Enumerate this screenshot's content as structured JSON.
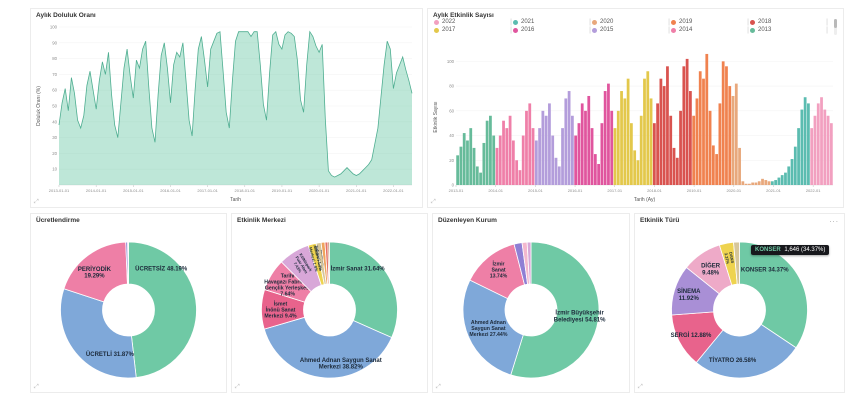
{
  "accent_colors": {
    "green": "#6fc9a5",
    "blue": "#7fa8d9",
    "pink": "#ee7fa6"
  },
  "panels": {
    "occupancy": {
      "title": "Aylık Doluluk Oranı"
    },
    "events": {
      "title": "Aylık Etkinlik Sayısı"
    },
    "pricing": {
      "title": "Ücretlendirme"
    },
    "venue": {
      "title": "Etkinlik Merkezi"
    },
    "organizer": {
      "title": "Düzenleyen Kurum"
    },
    "event_type": {
      "title": "Etkinlik Türü",
      "tooltip": {
        "series": "KONSER",
        "value": "1,646 (34.37%)",
        "series_color": "#6fc9a5"
      }
    }
  },
  "chart_data": [
    {
      "type": "area",
      "title": "Aylık Doluluk Oranı",
      "xlabel": "Tarih",
      "ylabel": "Doluluk Oranı (%)",
      "ylim": [
        0,
        100
      ],
      "yticks": [
        10,
        20,
        30,
        40,
        50,
        60,
        70,
        80,
        90,
        100
      ],
      "x_tick_labels": [
        "2013-01-01",
        "2014-01-01",
        "2015-01-01",
        "2016-01-01",
        "2017-01-01",
        "2018-01-01",
        "2019-01-01",
        "2020-01-01",
        "2021-01-01",
        "2022-01-01"
      ],
      "x_tick_index": [
        0,
        12,
        24,
        36,
        48,
        60,
        72,
        84,
        96,
        108
      ],
      "line_color": "#4fae91",
      "fill_color": "rgba(111,201,168,0.45)",
      "x_start": "2013-01",
      "values": [
        38,
        52,
        61,
        47,
        68,
        58,
        41,
        36,
        44,
        63,
        72,
        60,
        48,
        66,
        78,
        70,
        84,
        57,
        38,
        30,
        52,
        74,
        86,
        69,
        55,
        79,
        74,
        86,
        91,
        62,
        36,
        27,
        57,
        82,
        90,
        74,
        52,
        76,
        84,
        81,
        90,
        66,
        41,
        31,
        61,
        86,
        94,
        79,
        62,
        86,
        91,
        96,
        97,
        72,
        46,
        36,
        66,
        91,
        97,
        97,
        97,
        97,
        94,
        97,
        97,
        76,
        51,
        41,
        71,
        95,
        97,
        89,
        86,
        95,
        97,
        96,
        94,
        79,
        54,
        46,
        76,
        97,
        94,
        88,
        84,
        89,
        42,
        9,
        6,
        5,
        6,
        7,
        9,
        11,
        9,
        7,
        6,
        7,
        9,
        11,
        13,
        16,
        26,
        36,
        56,
        76,
        91,
        86,
        61,
        71,
        76,
        81,
        73,
        66,
        58
      ]
    },
    {
      "type": "bar",
      "title": "Aylık Etkinlik Sayısı",
      "xlabel": "Tarih (Ay)",
      "ylabel": "Etkinlik Sayısı",
      "ylim": [
        0,
        110
      ],
      "yticks": [
        0,
        20,
        40,
        60,
        80,
        100
      ],
      "x_tick_labels": [
        "2013-01",
        "2014-01",
        "2015-01",
        "2016-01",
        "2017-01",
        "2018-01",
        "2019-01",
        "2020-01",
        "2021-01",
        "2022-01"
      ],
      "x_tick_index": [
        0,
        12,
        24,
        36,
        48,
        60,
        72,
        84,
        96,
        108
      ],
      "x_start": "2013-01",
      "year_order": [
        "2013",
        "2014",
        "2015",
        "2016",
        "2017",
        "2018",
        "2019",
        "2020",
        "2021",
        "2022"
      ],
      "year_colors": {
        "2013": "#66bb9a",
        "2014": "#ef7fa8",
        "2015": "#b39ddb",
        "2016": "#e0559e",
        "2017": "#e3c84b",
        "2018": "#d9534f",
        "2019": "#f0824f",
        "2020": "#e8a87c",
        "2021": "#5bbcb0",
        "2022": "#f2a0c0"
      },
      "legend_rows": [
        [
          "2022",
          "2021",
          "2020",
          "2019",
          "2018"
        ],
        [
          "2017",
          "2016",
          "2015",
          "2014",
          "2013"
        ]
      ],
      "values": [
        24,
        31,
        42,
        36,
        46,
        30,
        15,
        10,
        34,
        52,
        56,
        40,
        30,
        40,
        52,
        46,
        56,
        36,
        20,
        12,
        40,
        60,
        66,
        46,
        36,
        46,
        60,
        56,
        66,
        40,
        22,
        15,
        46,
        70,
        76,
        56,
        40,
        50,
        66,
        60,
        72,
        46,
        25,
        17,
        50,
        76,
        82,
        60,
        46,
        60,
        76,
        70,
        86,
        50,
        28,
        20,
        56,
        86,
        92,
        70,
        50,
        66,
        86,
        80,
        96,
        56,
        30,
        22,
        60,
        96,
        102,
        76,
        56,
        70,
        92,
        86,
        106,
        60,
        32,
        25,
        66,
        100,
        96,
        80,
        72,
        82,
        30,
        3,
        1,
        1,
        2,
        2,
        3,
        5,
        4,
        3,
        3,
        4,
        6,
        8,
        10,
        15,
        21,
        31,
        46,
        61,
        71,
        66,
        46,
        56,
        66,
        71,
        61,
        56,
        50
      ]
    },
    {
      "type": "pie",
      "title": "Ücretlendirme",
      "slices": [
        {
          "label": "ÜCRETSİZ",
          "value": 48.19,
          "color": "#6fc9a5",
          "lines": [
            "ÜCRETSİZ 48.19%"
          ],
          "pos": [
            38,
            0.78
          ]
        },
        {
          "label": "ÜCRETLİ",
          "value": 31.87,
          "color": "#7fa8d9",
          "lines": [
            "ÜCRETLİ 31.87%"
          ],
          "pos": [
            203,
            0.7
          ]
        },
        {
          "label": "PERİYODİK",
          "value": 19.29,
          "color": "#ee7fa6",
          "lines": [
            "PERİYODİK",
            "19.29%"
          ],
          "pos": [
            318,
            0.75
          ]
        },
        {
          "label": "",
          "value": 0.45,
          "color": "#8f7fd4",
          "lines": []
        },
        {
          "label": "",
          "value": 0.2,
          "color": "#f3b8ce",
          "lines": []
        }
      ]
    },
    {
      "type": "pie",
      "title": "Etkinlik Merkezi",
      "slices": [
        {
          "label": "İzmir Sanat",
          "value": 31.64,
          "color": "#6fc9a5",
          "lines": [
            "İzmir Sanat 31.64%"
          ],
          "pos": [
            34,
            0.74
          ]
        },
        {
          "label": "Ahmed Adnan Saygun Sanat Merkezi",
          "value": 38.82,
          "color": "#7fa8d9",
          "lines": [
            "Ahmed Adnan Saygun Sanat",
            "Merkezi 38.82%"
          ],
          "pos": [
            168,
            0.8
          ]
        },
        {
          "label": "İsmet İnönü Sanat Merkezi",
          "value": 9.4,
          "color": "#e8638c",
          "lines": [
            "İsmet",
            "İnönü Sanat",
            "Merkezi 9.4%"
          ]
        },
        {
          "label": "Tarihi Havagazı Fabrikası Gençlik Yerleşkesi",
          "value": 7.64,
          "color": "#ee7fa6",
          "lines": [
            "Tarihi",
            "Havagazı Fabrikası",
            "Gençlik Yerleşkesi",
            "7.64%"
          ]
        },
        {
          "label": "Kültürpark Fuar Alanı",
          "value": 7.43,
          "color": "#d8a7d8",
          "lines": [
            "Kültürpark",
            "Fuar Alanı",
            "7.43%"
          ],
          "rotate": true
        },
        {
          "label": "Atatürk Kültür Merkezi",
          "value": 1.9,
          "color": "#eed34f",
          "lines": [
            "Atatürk Kültür",
            "Merkezi 1.9%"
          ],
          "rotate": true
        },
        {
          "label": "Elhamra Sahnesi",
          "value": 1.2,
          "color": "#d6c69a",
          "lines": [
            "Elhamra",
            "Sahnesi 1.2%"
          ],
          "rotate": true
        },
        {
          "label": "",
          "value": 0.9,
          "color": "#efa45d",
          "lines": []
        },
        {
          "label": "",
          "value": 0.7,
          "color": "#e57368",
          "lines": []
        },
        {
          "label": "",
          "value": 0.37,
          "color": "#b97a56",
          "lines": []
        }
      ]
    },
    {
      "type": "pie",
      "title": "Düzenleyen Kurum",
      "slices": [
        {
          "label": "İzmir Büyükşehir Belediyesi",
          "value": 54.81,
          "color": "#6fc9a5",
          "lines": [
            "İzmir Büyükşehir",
            "Belediyesi 54.81%"
          ],
          "pos": [
            97,
            0.72
          ]
        },
        {
          "label": "Ahmed Adnan Saygun Sanat Merkezi",
          "value": 27.44,
          "color": "#7fa8d9",
          "lines": [
            "Ahmed Adnan",
            "Saygun Sanat",
            "Merkezi 27.44%"
          ],
          "pos": [
            247,
            0.68
          ]
        },
        {
          "label": "İzmir Sanat",
          "value": 13.74,
          "color": "#ee7fa6",
          "lines": [
            "İzmir",
            "Sanat",
            "13.74%"
          ],
          "pos": [
            321,
            0.76
          ]
        },
        {
          "label": "",
          "value": 1.9,
          "color": "#8f7fd4",
          "lines": []
        },
        {
          "label": "",
          "value": 1.2,
          "color": "#f3b8ce",
          "lines": []
        },
        {
          "label": "",
          "value": 0.91,
          "color": "#d8a7d8",
          "lines": []
        }
      ]
    },
    {
      "type": "pie",
      "title": "Etkinlik Türü",
      "slices": [
        {
          "label": "KONSER",
          "value": 34.37,
          "color": "#6fc9a5",
          "lines": [
            "KONSER 34.37%"
          ],
          "pos": [
            32,
            0.7
          ]
        },
        {
          "label": "TİYATRO",
          "value": 26.58,
          "color": "#7fa8d9",
          "lines": [
            "TİYATRO 26.58%"
          ],
          "pos": [
            188,
            0.74
          ]
        },
        {
          "label": "SERGİ",
          "value": 12.88,
          "color": "#e8638c",
          "lines": [
            "SERGİ 12.88%"
          ],
          "pos": [
            243,
            0.8
          ]
        },
        {
          "label": "SİNEMA",
          "value": 11.92,
          "color": "#a98fd6",
          "lines": [
            "SİNEMA",
            "11.92%"
          ],
          "pos": [
            287,
            0.78
          ]
        },
        {
          "label": "DİĞER",
          "value": 9.48,
          "color": "#eeaac8",
          "lines": [
            "DİĞER",
            "9.48%"
          ],
          "pos": [
            325,
            0.74
          ]
        },
        {
          "label": "DANS",
          "value": 3.37,
          "color": "#eed34f",
          "lines": [
            "DANS",
            "3.37%"
          ],
          "rotate": true
        },
        {
          "label": "",
          "value": 1.4,
          "color": "#d6c69a",
          "lines": []
        }
      ]
    }
  ],
  "icons": {
    "expand": "⤢",
    "menu": "..."
  }
}
